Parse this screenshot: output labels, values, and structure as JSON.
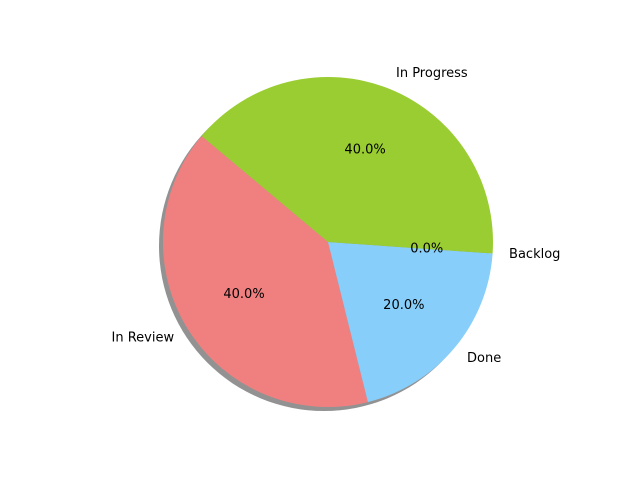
{
  "chart_data": {
    "type": "pie",
    "title": "",
    "start_angle_deg": 140,
    "direction": "counterclockwise",
    "shadow": true,
    "slices": [
      {
        "label": "In Review",
        "value": 40.0,
        "pct_text": "40.0%",
        "color": "#f08080"
      },
      {
        "label": "Done",
        "value": 20.0,
        "pct_text": "20.0%",
        "color": "#87cefa"
      },
      {
        "label": "Backlog",
        "value": 0.0,
        "pct_text": "0.0%",
        "color": "#ffd700"
      },
      {
        "label": "In Progress",
        "value": 40.0,
        "pct_text": "40.0%",
        "color": "#9acd32"
      }
    ]
  }
}
